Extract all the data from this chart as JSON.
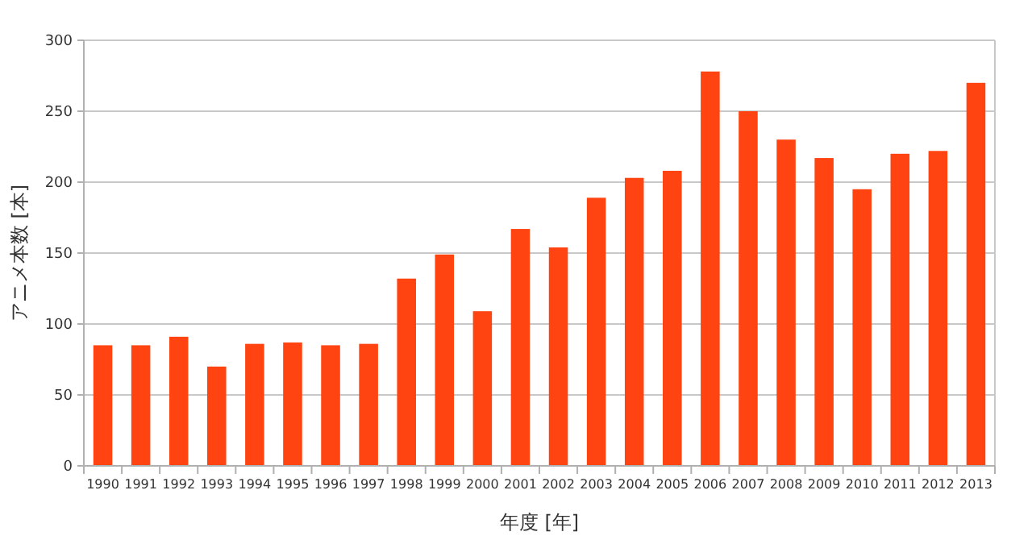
{
  "chart_data": {
    "type": "bar",
    "xlabel": "年度 [年]",
    "ylabel": "アニメ本数 [本]",
    "categories": [
      "1990",
      "1991",
      "1992",
      "1993",
      "1994",
      "1995",
      "1996",
      "1997",
      "1998",
      "1999",
      "2000",
      "2001",
      "2002",
      "2003",
      "2004",
      "2005",
      "2006",
      "2007",
      "2008",
      "2009",
      "2010",
      "2011",
      "2012",
      "2013"
    ],
    "values": [
      85,
      85,
      91,
      70,
      86,
      87,
      85,
      86,
      132,
      149,
      109,
      167,
      154,
      189,
      203,
      208,
      278,
      250,
      230,
      217,
      195,
      220,
      222,
      270
    ],
    "color": "#ff4411",
    "ylim": [
      0,
      300
    ],
    "yticks": [
      0,
      50,
      100,
      150,
      200,
      250,
      300
    ],
    "grid": "y"
  }
}
